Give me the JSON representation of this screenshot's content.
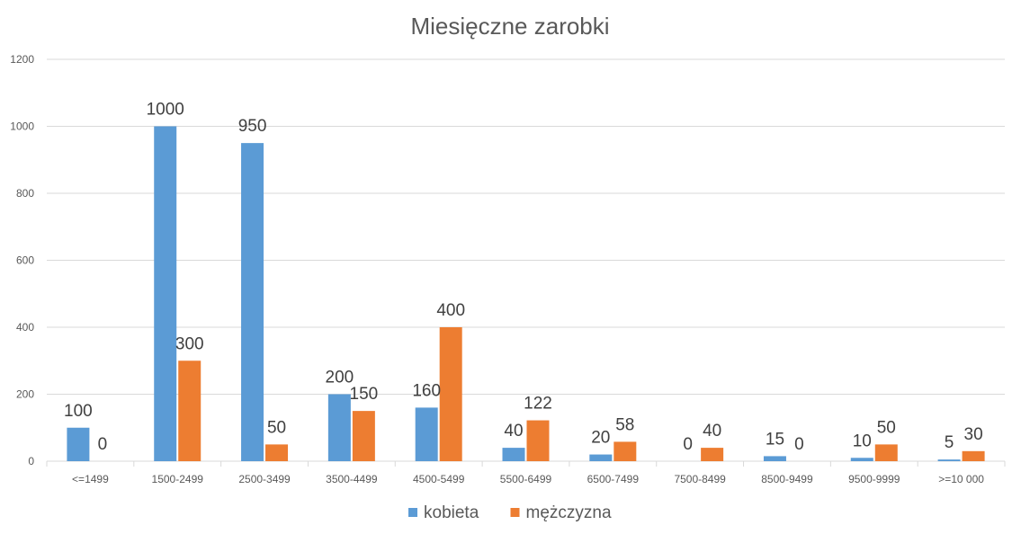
{
  "chart_data": {
    "type": "bar",
    "title": "Miesięczne zarobki",
    "xlabel": "",
    "ylabel": "",
    "categories": [
      "<=1499",
      "1500-2499",
      "2500-3499",
      "3500-4499",
      "4500-5499",
      "5500-6499",
      "6500-7499",
      "7500-8499",
      "8500-9499",
      "9500-9999",
      ">=10 000"
    ],
    "series": [
      {
        "name": "kobieta",
        "color": "#5B9BD5",
        "values": [
          100,
          1000,
          950,
          200,
          160,
          40,
          20,
          0,
          15,
          10,
          5
        ]
      },
      {
        "name": "mężczyzna",
        "color": "#ED7D31",
        "values": [
          0,
          300,
          50,
          150,
          400,
          122,
          58,
          40,
          0,
          50,
          30
        ]
      }
    ],
    "ylim": [
      0,
      1200
    ],
    "yticks": [
      0,
      200,
      400,
      600,
      800,
      1000,
      1200
    ],
    "grid": true,
    "data_labels": true,
    "legend_position": "bottom"
  }
}
